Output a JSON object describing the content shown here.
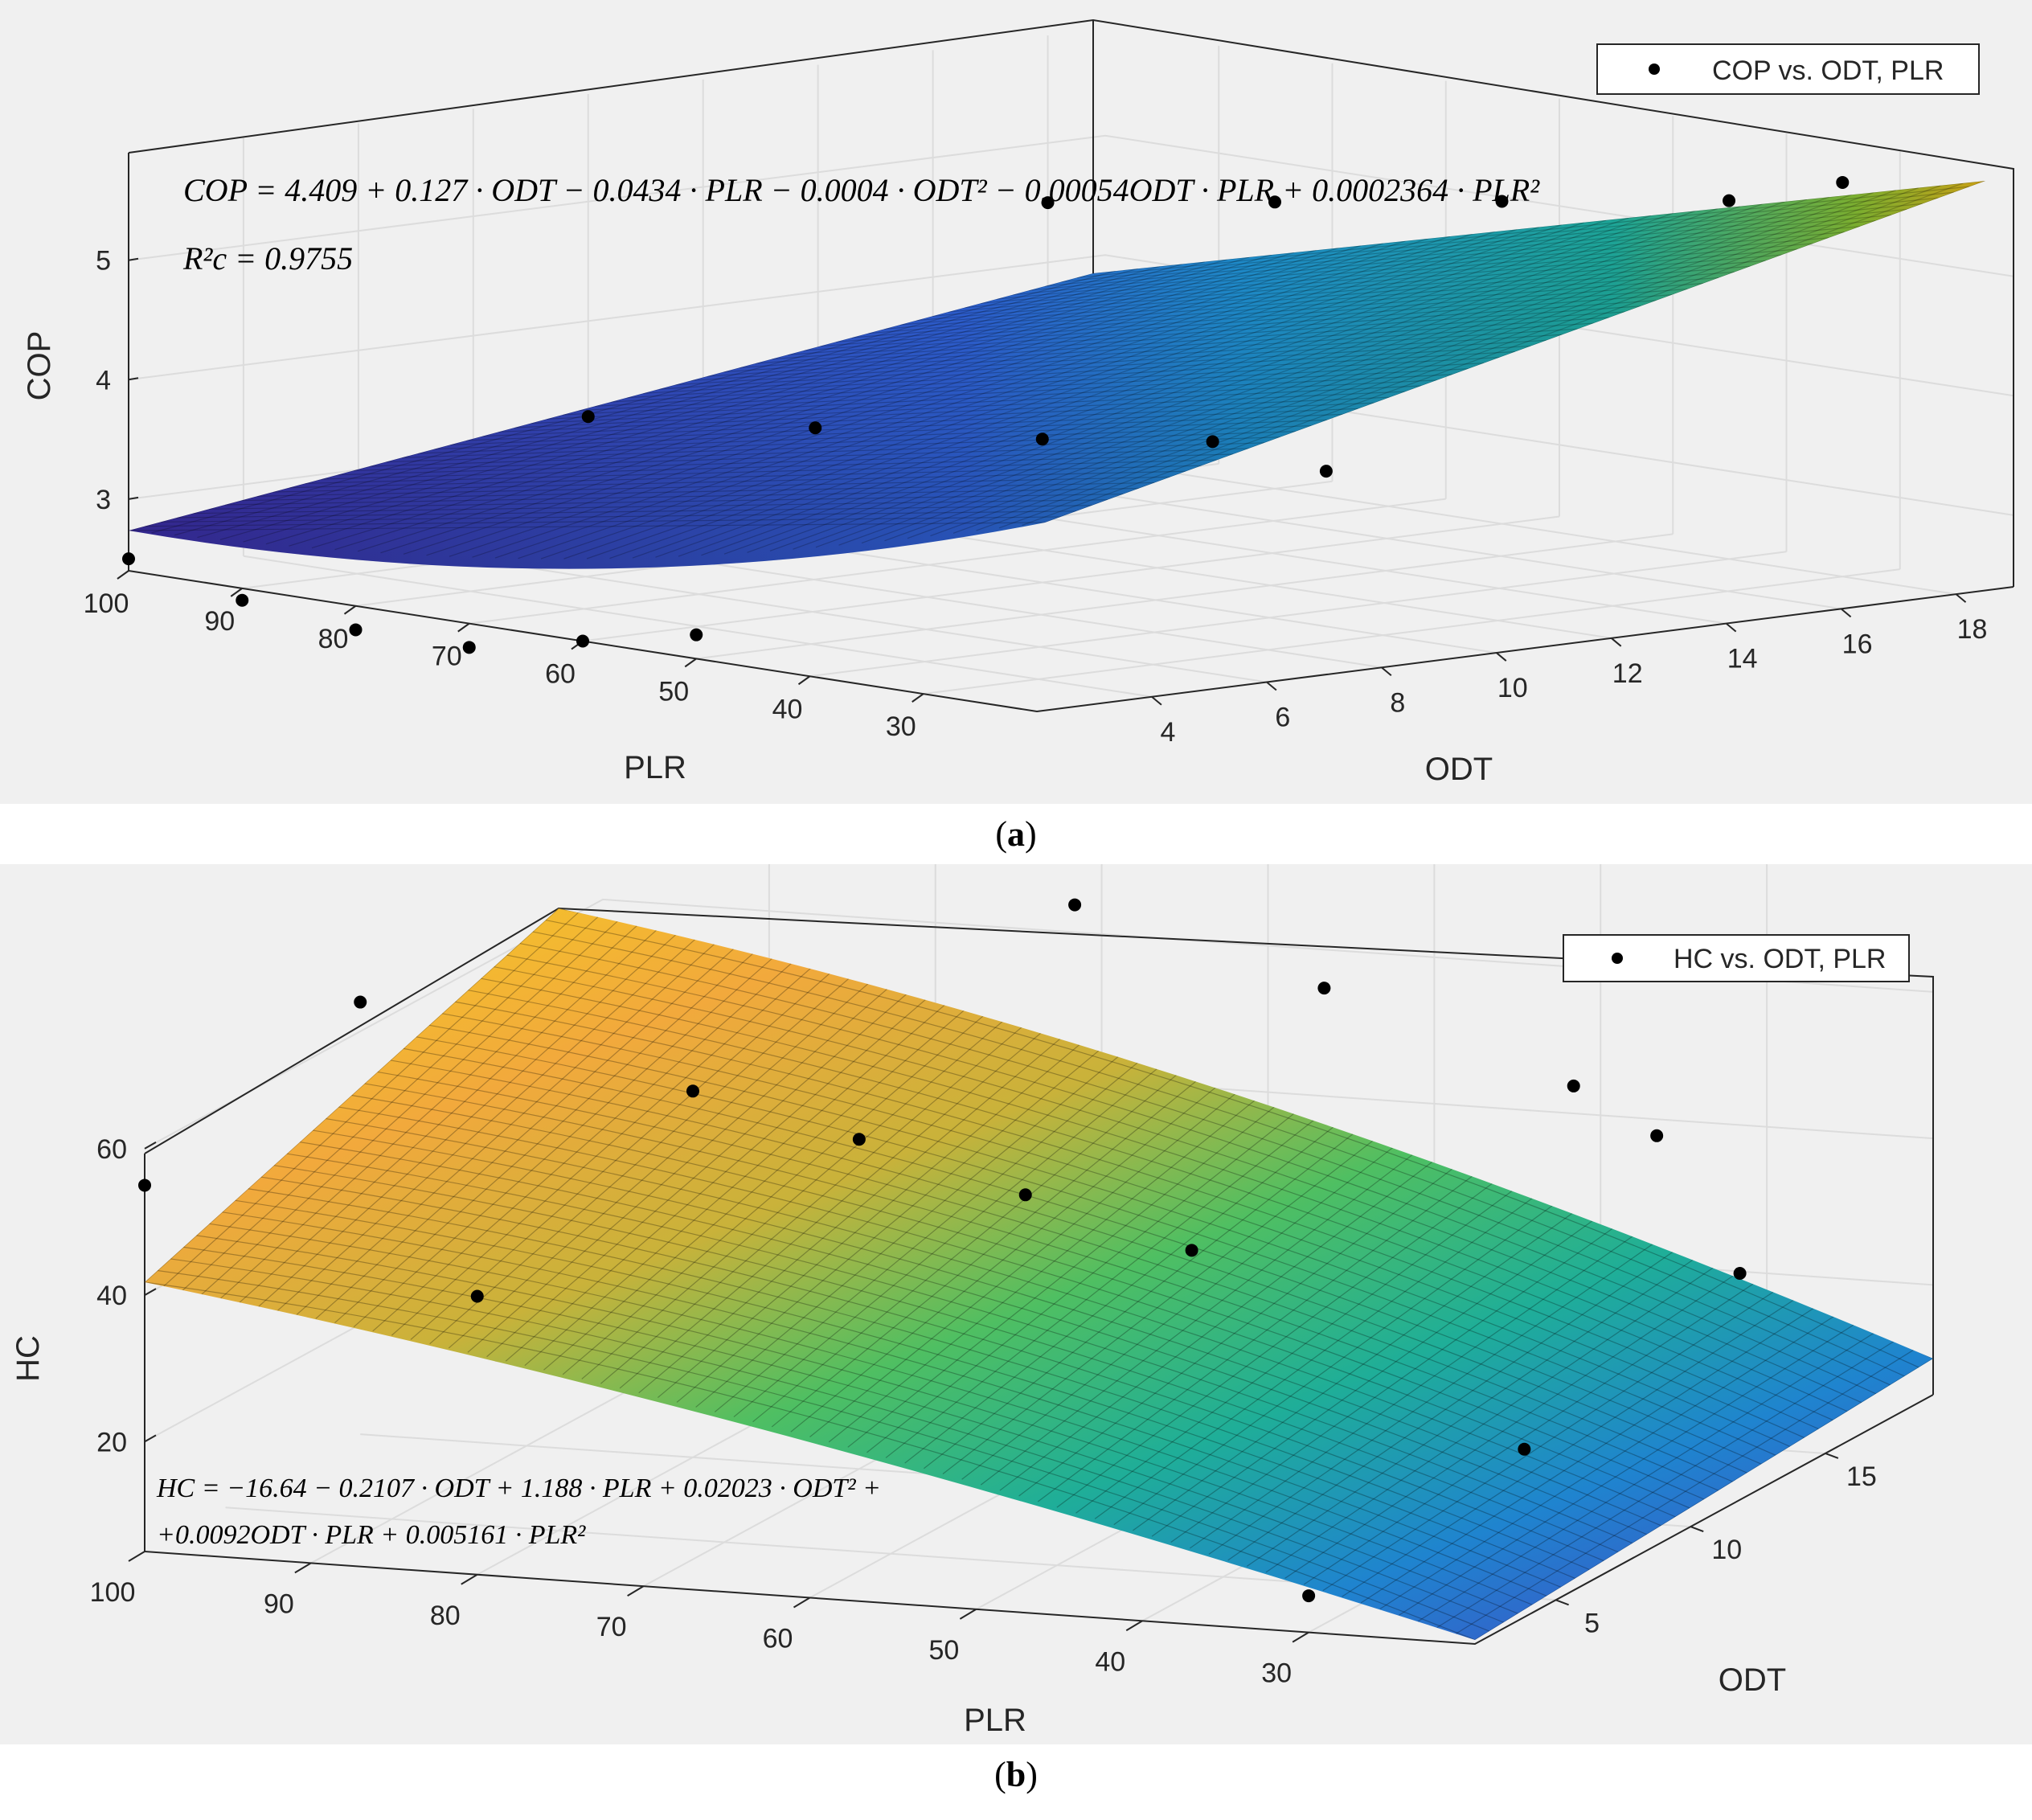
{
  "panels": [
    {
      "caption_open": "(",
      "caption_letter": "a",
      "caption_close": ")",
      "legend": "COP vs. ODT, PLR",
      "equation": "COP = 4.409 + 0.127 · ODT − 0.0434 · PLR − 0.0004 · ODT² − 0.00054ODT · PLR + 0.0002364 · PLR²",
      "r2": "R²c = 0.9755",
      "zlabel": "COP",
      "plr_label": "PLR",
      "odt_label": "ODT",
      "z_ticks": [
        "3",
        "4",
        "5"
      ],
      "plr_ticks": [
        "100",
        "90",
        "80",
        "70",
        "60",
        "50",
        "40",
        "30"
      ],
      "odt_ticks": [
        "4",
        "6",
        "8",
        "10",
        "12",
        "14",
        "16",
        "18"
      ]
    },
    {
      "caption_open": "(",
      "caption_letter": "b",
      "caption_close": ")",
      "legend": "HC vs. ODT, PLR",
      "equation_line1": "HC = −16.64 − 0.2107 · ODT + 1.188 · PLR + 0.02023 · ODT² +",
      "equation_line2": "+0.0092ODT · PLR + 0.005161 · PLR²",
      "zlabel": "HC",
      "plr_label": "PLR",
      "odt_label": "ODT",
      "z_ticks": [
        "20",
        "40",
        "60"
      ],
      "plr_ticks": [
        "100",
        "90",
        "80",
        "70",
        "60",
        "50",
        "40",
        "30"
      ],
      "odt_ticks": [
        "5",
        "10",
        "15"
      ]
    }
  ],
  "chart_data": [
    {
      "type": "surface",
      "x_variable": "PLR",
      "y_variable": "ODT",
      "z_variable": "COP",
      "fit": {
        "terms": [
          "1",
          "ODT",
          "PLR",
          "ODT^2",
          "ODT*PLR",
          "PLR^2"
        ],
        "coefficients": [
          4.409,
          0.127,
          -0.0434,
          -0.0004,
          -0.00054,
          0.0002364
        ],
        "r2_c": 0.9755
      },
      "xlim": [
        20,
        100
      ],
      "ylim": [
        2,
        19
      ],
      "zlim": [
        2.4,
        5.9
      ],
      "grid": true,
      "legend_position": "top-right",
      "points": [
        {
          "plr": 100,
          "odt": 2,
          "cop": 2.5
        },
        {
          "plr": 90,
          "odt": 2,
          "cop": 2.3
        },
        {
          "plr": 80,
          "odt": 2,
          "cop": 2.2
        },
        {
          "plr": 70,
          "odt": 2,
          "cop": 2.2
        },
        {
          "plr": 60,
          "odt": 2,
          "cop": 2.4
        },
        {
          "plr": 50,
          "odt": 2,
          "cop": 2.6
        },
        {
          "plr": 100,
          "odt": 10,
          "cop": 3.2
        },
        {
          "plr": 80,
          "odt": 10,
          "cop": 3.4
        },
        {
          "plr": 60,
          "odt": 10,
          "cop": 3.6
        },
        {
          "plr": 45,
          "odt": 10,
          "cop": 3.8
        },
        {
          "plr": 35,
          "odt": 10,
          "cop": 3.7
        },
        {
          "plr": 100,
          "odt": 18,
          "cop": 4.5
        },
        {
          "plr": 80,
          "odt": 18,
          "cop": 4.8
        },
        {
          "plr": 60,
          "odt": 18,
          "cop": 5.1
        },
        {
          "plr": 40,
          "odt": 18,
          "cop": 5.4
        },
        {
          "plr": 30,
          "odt": 18,
          "cop": 5.7
        }
      ]
    },
    {
      "type": "surface",
      "x_variable": "PLR",
      "y_variable": "ODT",
      "z_variable": "HC",
      "fit": {
        "terms": [
          "1",
          "ODT",
          "PLR",
          "ODT^2",
          "ODT*PLR",
          "PLR^2"
        ],
        "coefficients": [
          -16.64,
          -0.2107,
          1.188,
          0.02023,
          0.0092,
          0.005161
        ]
      },
      "xlim": [
        20,
        100
      ],
      "ylim": [
        2,
        19
      ],
      "zlim": [
        5,
        95
      ],
      "grid": true,
      "legend_position": "top-right",
      "points": [
        {
          "plr": 100,
          "odt": 2,
          "hc": 55
        },
        {
          "plr": 80,
          "odt": 2,
          "hc": 43
        },
        {
          "plr": 30,
          "odt": 2,
          "hc": 10
        },
        {
          "plr": 100,
          "odt": 10,
          "hc": 64
        },
        {
          "plr": 80,
          "odt": 10,
          "hc": 55
        },
        {
          "plr": 70,
          "odt": 10,
          "hc": 50
        },
        {
          "plr": 60,
          "odt": 10,
          "hc": 44
        },
        {
          "plr": 50,
          "odt": 10,
          "hc": 38
        },
        {
          "plr": 30,
          "odt": 10,
          "hc": 14
        },
        {
          "plr": 90,
          "odt": 18,
          "hc": 78
        },
        {
          "plr": 70,
          "odt": 18,
          "hc": 66
        },
        {
          "plr": 55,
          "odt": 18,
          "hc": 57
        },
        {
          "plr": 40,
          "odt": 18,
          "hc": 46
        },
        {
          "plr": 35,
          "odt": 18,
          "hc": 40
        },
        {
          "plr": 30,
          "odt": 18,
          "hc": 22
        }
      ]
    }
  ]
}
